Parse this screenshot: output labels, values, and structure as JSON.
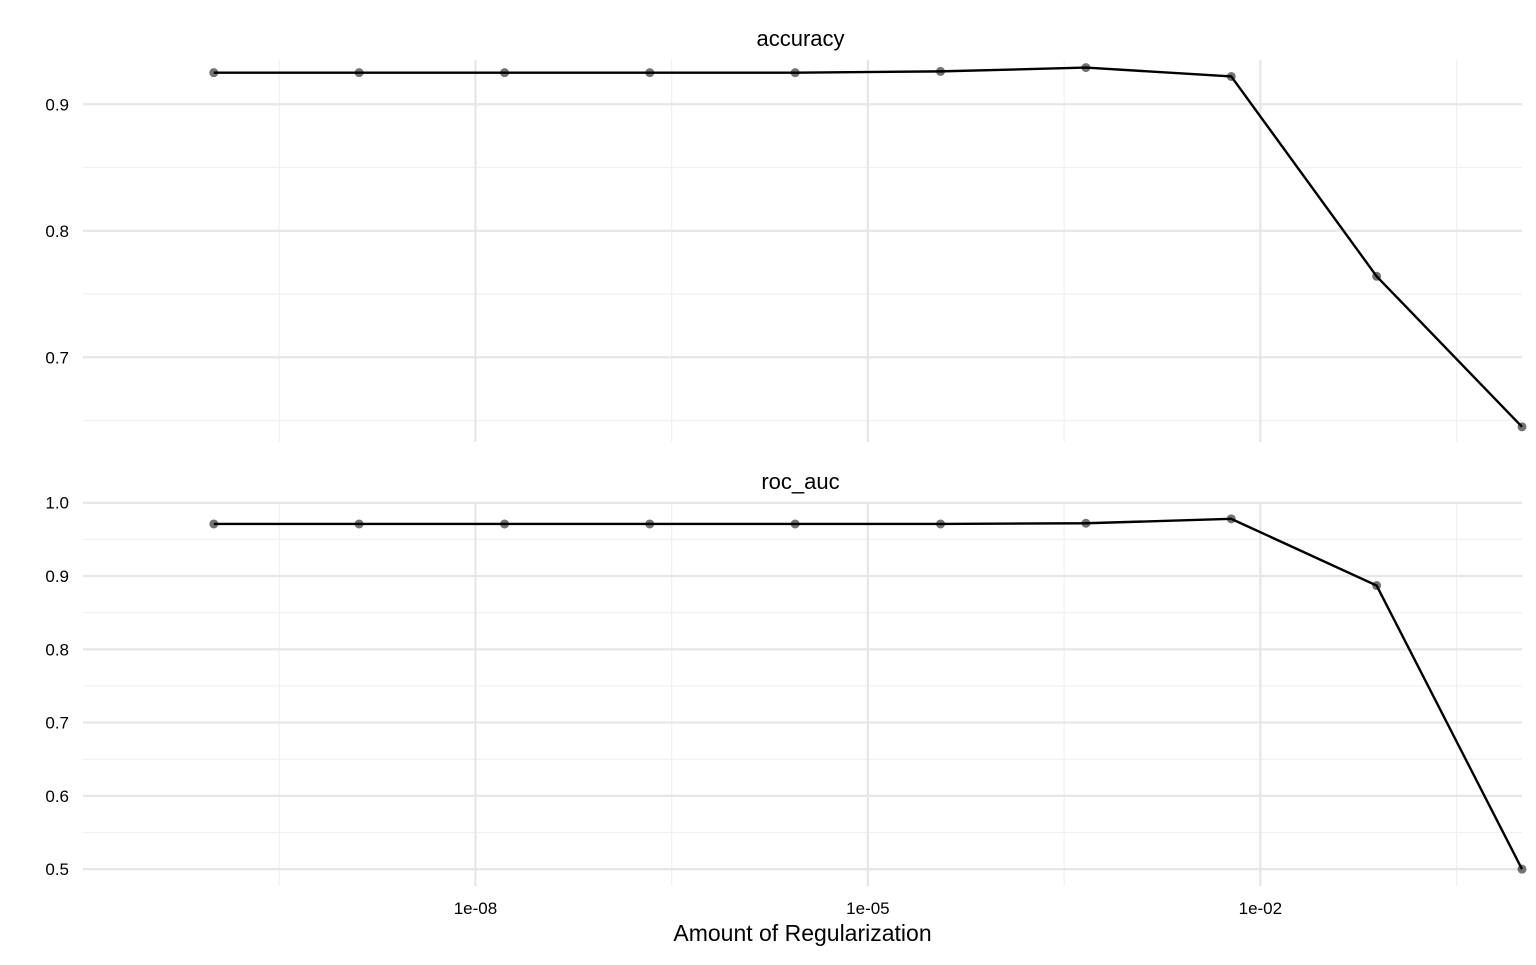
{
  "chart_data": [
    {
      "type": "line",
      "title": "accuracy",
      "xlabel": "",
      "ylabel": "",
      "x_scale": "log10",
      "xlim": [
        1e-11,
        1
      ],
      "x_ticks": [
        1e-08,
        1e-05,
        0.01
      ],
      "x_tick_labels": [],
      "y_ticks": [
        0.7,
        0.8,
        0.9
      ],
      "y_tick_labels": [
        "0.7",
        "0.8",
        "0.9"
      ],
      "ylim": [
        0.633,
        0.935
      ],
      "grid": true,
      "x": [
        1e-10,
        1.29e-09,
        1.67e-08,
        2.15e-07,
        2.78e-06,
        3.59e-05,
        0.000464,
        0.00599,
        0.0774,
        1.0
      ],
      "series": [
        {
          "values": [
            0.925,
            0.925,
            0.925,
            0.925,
            0.925,
            0.926,
            0.929,
            0.922,
            0.764,
            0.645
          ]
        }
      ]
    },
    {
      "type": "line",
      "title": "roc_auc",
      "xlabel": "Amount of Regularization",
      "ylabel": "",
      "x_scale": "log10",
      "xlim": [
        1e-11,
        1
      ],
      "x_ticks": [
        1e-08,
        1e-05,
        0.01
      ],
      "x_tick_labels": [
        "1e-08",
        "1e-05",
        "1e-02"
      ],
      "y_ticks": [
        0.5,
        0.6,
        0.7,
        0.8,
        0.9,
        1.0
      ],
      "y_tick_labels": [
        "0.5",
        "0.6",
        "0.7",
        "0.8",
        "0.9",
        "1.0"
      ],
      "ylim": [
        0.477,
        1.001
      ],
      "grid": true,
      "x": [
        1e-10,
        1.29e-09,
        1.67e-08,
        2.15e-07,
        2.78e-06,
        3.59e-05,
        0.000464,
        0.00599,
        0.0774,
        1.0
      ],
      "series": [
        {
          "values": [
            0.971,
            0.971,
            0.971,
            0.971,
            0.971,
            0.971,
            0.972,
            0.978,
            0.887,
            0.5
          ]
        }
      ]
    }
  ]
}
